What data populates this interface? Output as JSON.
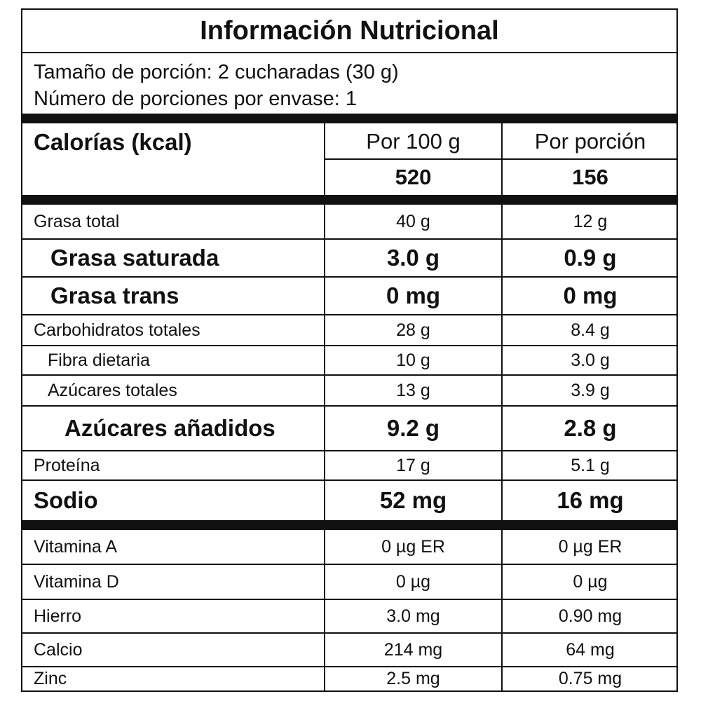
{
  "title": "Información Nutricional",
  "serving": {
    "size": "Tamaño de porción: 2 cucharadas (30 g)",
    "servings_per_container": "Número de porciones por envase: 1"
  },
  "calories": {
    "label": "Calorías (kcal)",
    "col_per_100g": "Por 100 g",
    "col_per_serving": "Por porción",
    "per_100g": "520",
    "per_serving": "156"
  },
  "nutrients": [
    {
      "name": "Grasa total",
      "per_100g": "40 g",
      "per_serving": "12 g"
    },
    {
      "name": "Grasa saturada",
      "per_100g": "3.0 g",
      "per_serving": "0.9 g"
    },
    {
      "name": "Grasa trans",
      "per_100g": "0 mg",
      "per_serving": "0 mg"
    },
    {
      "name": "Carbohidratos totales",
      "per_100g": "28 g",
      "per_serving": "8.4 g"
    },
    {
      "name": "Fibra dietaria",
      "per_100g": "10 g",
      "per_serving": "3.0 g"
    },
    {
      "name": "Azúcares totales",
      "per_100g": "13 g",
      "per_serving": "3.9 g"
    },
    {
      "name": "Azúcares añadidos",
      "per_100g": "9.2 g",
      "per_serving": "2.8 g"
    },
    {
      "name": "Proteína",
      "per_100g": "17 g",
      "per_serving": "5.1 g"
    },
    {
      "name": "Sodio",
      "per_100g": "52 mg",
      "per_serving": "16 mg"
    }
  ],
  "micronutrients": [
    {
      "name": "Vitamina A",
      "per_100g": "0 µg ER",
      "per_serving": "0 µg ER"
    },
    {
      "name": "Vitamina D",
      "per_100g": "0 µg",
      "per_serving": "0 µg"
    },
    {
      "name": "Hierro",
      "per_100g": "3.0 mg",
      "per_serving": "0.90 mg"
    },
    {
      "name": "Calcio",
      "per_100g": "214 mg",
      "per_serving": "64 mg"
    },
    {
      "name": "Zinc",
      "per_100g": "2.5 mg",
      "per_serving": "0.75 mg"
    }
  ]
}
